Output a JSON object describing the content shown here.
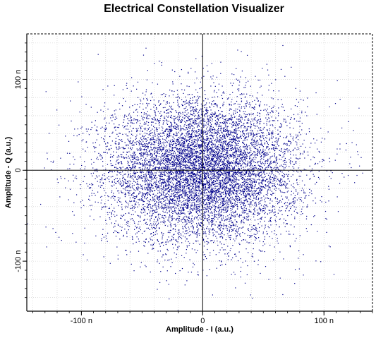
{
  "chart_data": {
    "type": "scatter",
    "title": "Electrical Constellation Visualizer",
    "xlabel": "Amplitude - I (a.u.)",
    "ylabel": "Amplitude - Q (a.u.)",
    "xlim": [
      -145,
      140
    ],
    "ylim": [
      -155,
      150
    ],
    "xticks": [
      {
        "value": -100,
        "label": "-100 n"
      },
      {
        "value": 0,
        "label": "0"
      },
      {
        "value": 100,
        "label": "100 n"
      }
    ],
    "yticks": [
      {
        "value": 100,
        "label": "100 n"
      },
      {
        "value": 0,
        "label": "0"
      },
      {
        "value": -100,
        "label": "-100 n"
      }
    ],
    "grid": true,
    "series": [
      {
        "color": "#00008B",
        "distribution": "gaussian",
        "center": [
          0,
          0
        ],
        "std_i": 40,
        "std_q": 40,
        "point_count": 9000
      }
    ]
  }
}
